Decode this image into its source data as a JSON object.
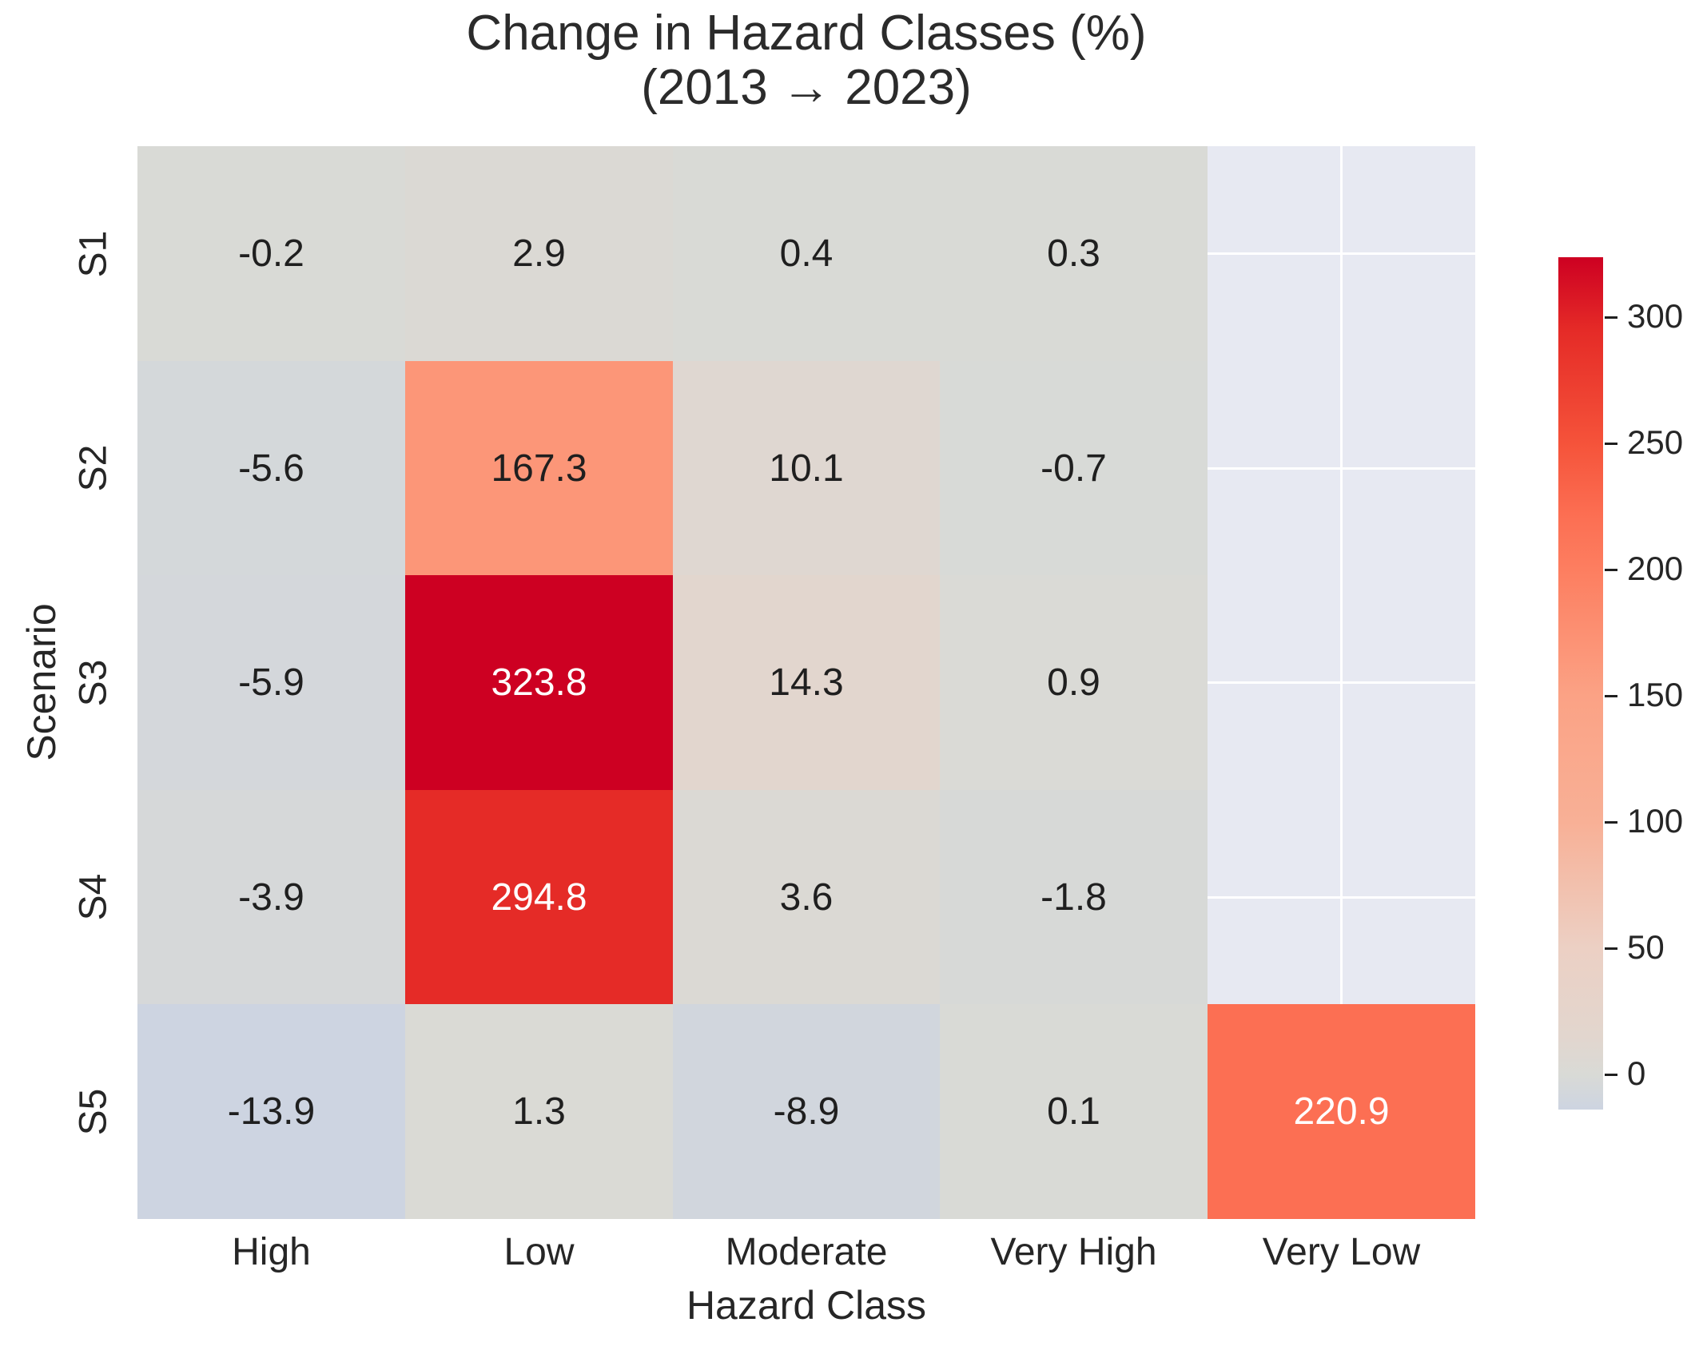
{
  "title": {
    "line1": "Change in Hazard Classes (%)",
    "line2": "(2013 → 2023)"
  },
  "chart_data": {
    "type": "heatmap",
    "title": "Change in Hazard Classes (%) (2013 → 2023)",
    "xlabel": "Hazard Class",
    "ylabel": "Scenario",
    "x_categories": [
      "High",
      "Low",
      "Moderate",
      "Very High",
      "Very Low"
    ],
    "y_categories": [
      "S1",
      "S2",
      "S3",
      "S4",
      "S5"
    ],
    "values": [
      [
        -0.2,
        2.9,
        0.4,
        0.3,
        null
      ],
      [
        -5.6,
        167.3,
        10.1,
        -0.7,
        null
      ],
      [
        -5.9,
        323.8,
        14.3,
        0.9,
        null
      ],
      [
        -3.9,
        294.8,
        3.6,
        -1.8,
        null
      ],
      [
        -13.9,
        1.3,
        -8.9,
        0.1,
        220.9
      ]
    ],
    "value_format_decimals": 1,
    "vmin": -13.9,
    "vmax": 323.8,
    "colorbar_ticks": [
      0,
      50,
      100,
      150,
      200,
      250,
      300
    ],
    "legend_position": "right",
    "grid": true,
    "colors": {
      "figure_background": "#ffffff",
      "masked_cell_background": "#e7e9f2",
      "masked_gridline": "#ffffff",
      "annotation_dark": "#1f1f1f",
      "annotation_light": "#ffffff",
      "colormap_stops": [
        {
          "value": -13.9,
          "color": "#cdd4e1"
        },
        {
          "value": 0,
          "color": "#d9dad6"
        },
        {
          "value": 15,
          "color": "#e2d6ce"
        },
        {
          "value": 50,
          "color": "#ecd0c4"
        },
        {
          "value": 100,
          "color": "#f8b096"
        },
        {
          "value": 150,
          "color": "#fba285"
        },
        {
          "value": 200,
          "color": "#fd7e60"
        },
        {
          "value": 220.9,
          "color": "#fc6f53"
        },
        {
          "value": 250,
          "color": "#f5533a"
        },
        {
          "value": 294.8,
          "color": "#e52b27"
        },
        {
          "value": 323.8,
          "color": "#cd0022"
        }
      ]
    }
  }
}
